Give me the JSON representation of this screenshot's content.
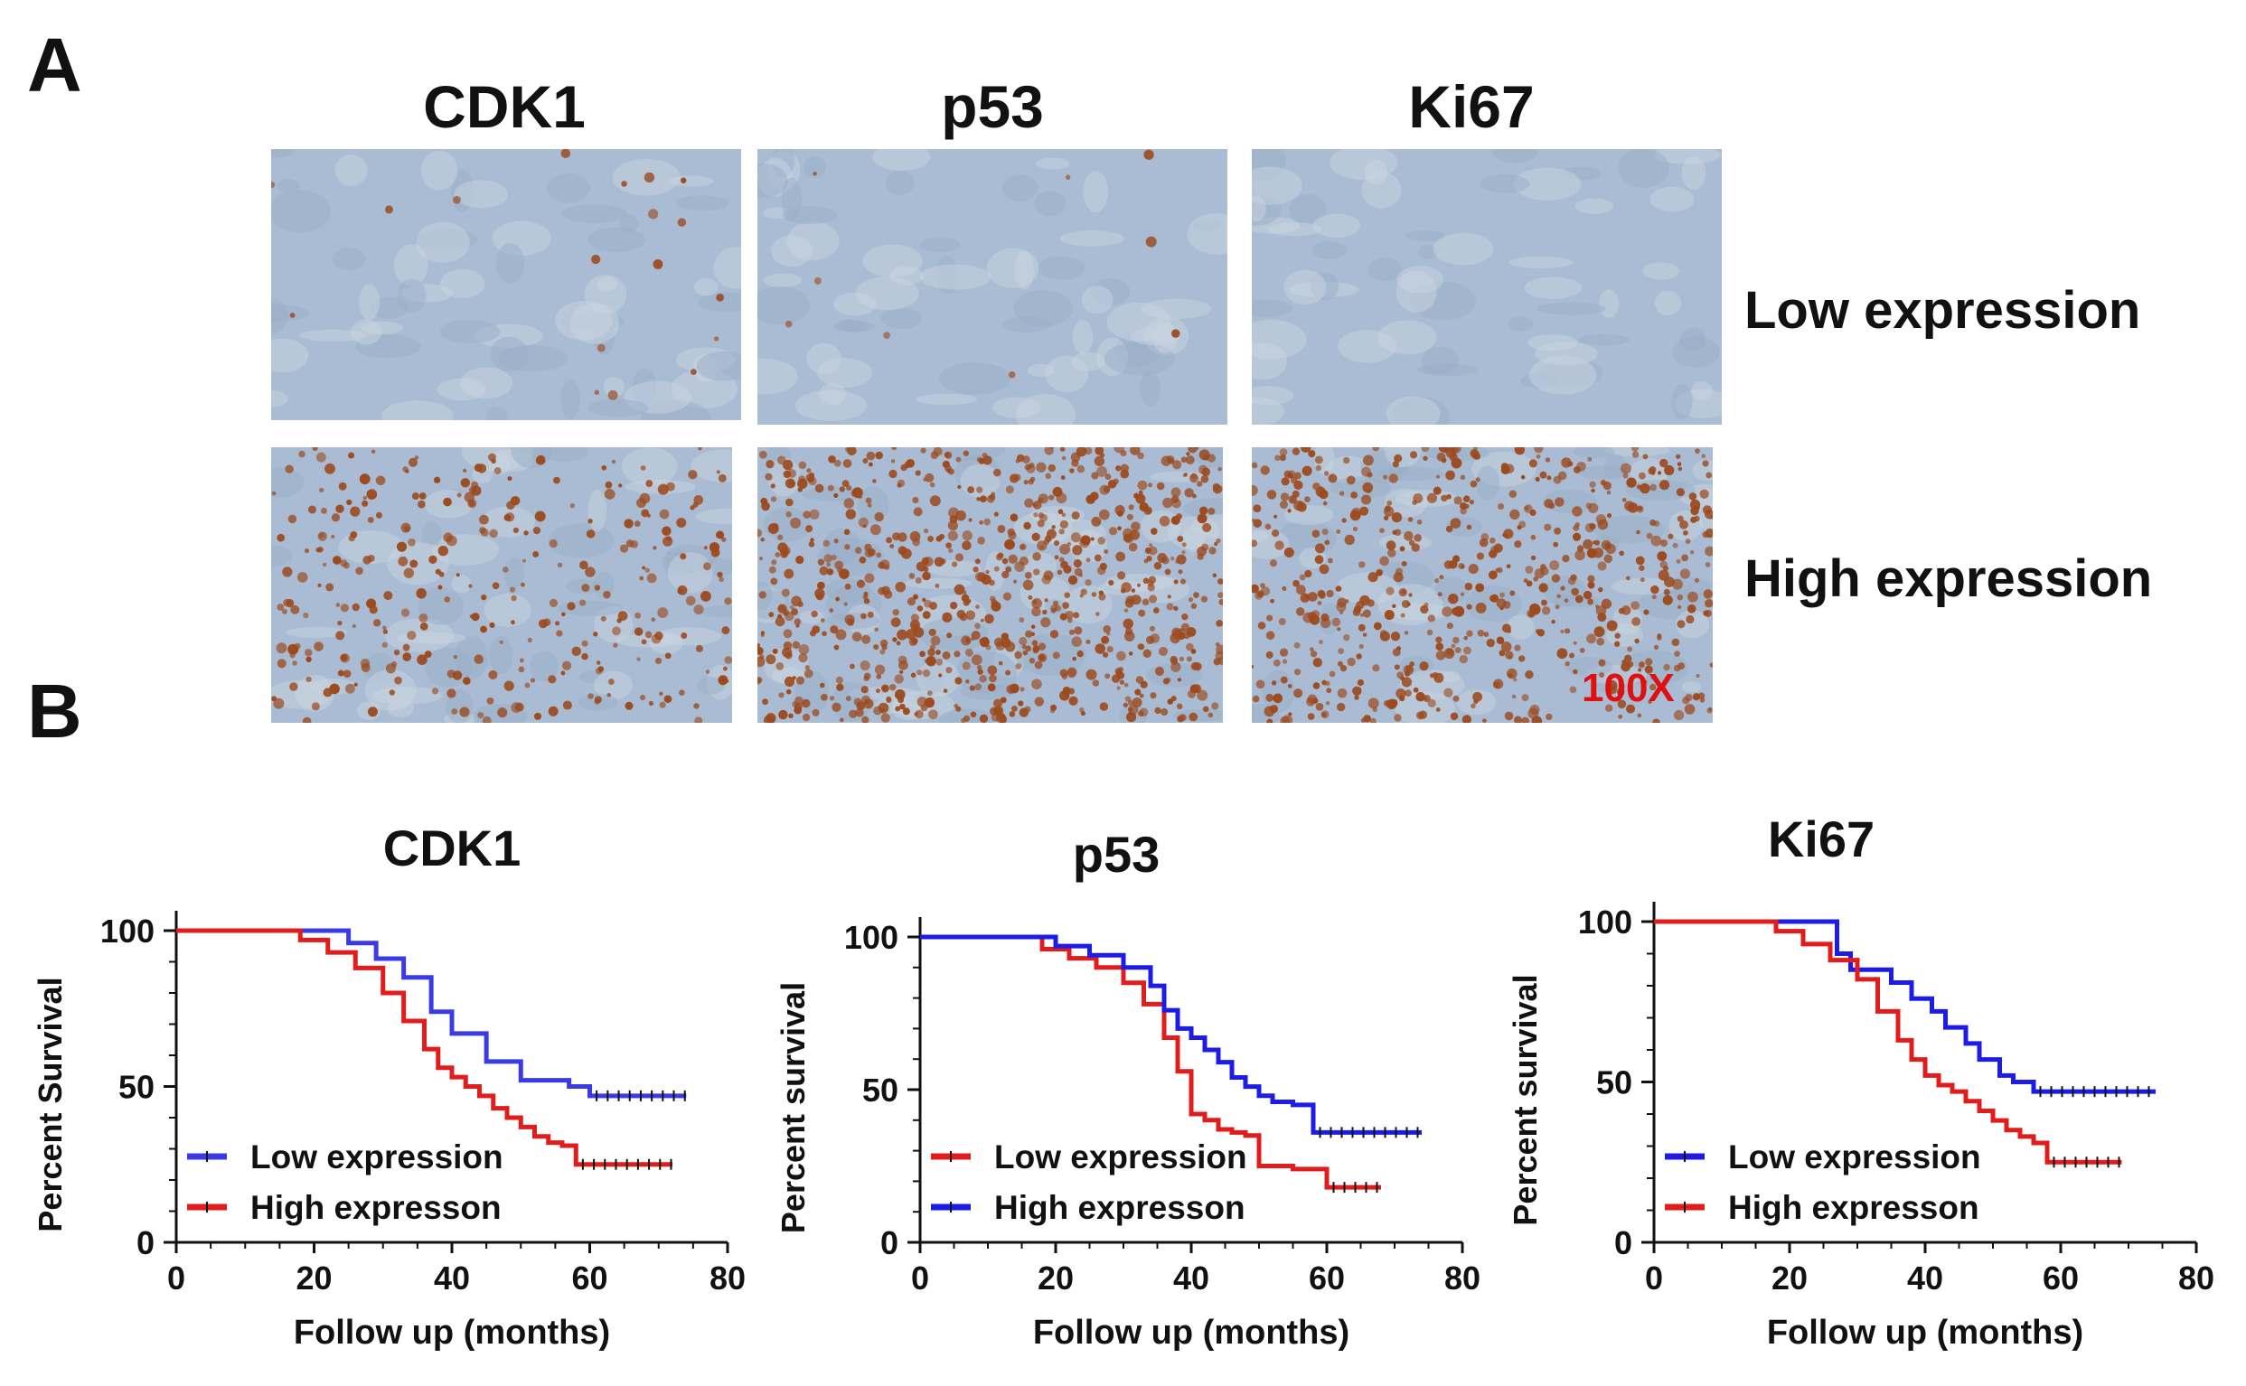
{
  "panel_a": {
    "letter": "A",
    "columns": [
      "CDK1",
      "p53",
      "Ki67"
    ],
    "rows": [
      "Low expression",
      "High expression"
    ],
    "magnification": "100X",
    "colors": {
      "hematoxylin": "#a9bcd3",
      "dab_stain": "#9c4a1e"
    }
  },
  "panel_b": {
    "letter": "B"
  },
  "chart_data": [
    {
      "type": "line",
      "title": "CDK1",
      "xlabel": "Follow up (months)",
      "ylabel": "Percent Survival",
      "xlim": [
        0,
        80
      ],
      "ylim": [
        0,
        100
      ],
      "x_ticks": [
        "0",
        "20",
        "40",
        "60",
        "80"
      ],
      "y_ticks": [
        "0",
        "50",
        "100"
      ],
      "legend_placement": "bottom-left",
      "series": [
        {
          "name": "Low expression",
          "color": "#3b3be6",
          "x": [
            0,
            25,
            25,
            29,
            29,
            33,
            33,
            37,
            37,
            40,
            40,
            45,
            45,
            50,
            50,
            57,
            57,
            60,
            60,
            74
          ],
          "y": [
            100,
            100,
            96,
            96,
            91,
            91,
            85,
            85,
            74,
            74,
            67,
            67,
            58,
            58,
            52,
            52,
            50,
            50,
            47,
            47
          ]
        },
        {
          "name": "High expresson",
          "color": "#e01c1c",
          "x": [
            0,
            12,
            18,
            22,
            26,
            30,
            33,
            36,
            38,
            40,
            42,
            44,
            46,
            48,
            50,
            52,
            54,
            56,
            58,
            58,
            72
          ],
          "y": [
            100,
            100,
            97,
            93,
            88,
            80,
            71,
            62,
            56,
            53,
            50,
            47,
            43,
            40,
            37,
            34,
            32,
            31,
            28,
            25,
            25
          ]
        }
      ]
    },
    {
      "type": "line",
      "title": "p53",
      "xlabel": "Follow up (months)",
      "ylabel": "Percent survival",
      "xlim": [
        0,
        80
      ],
      "ylim": [
        0,
        100
      ],
      "x_ticks": [
        "0",
        "20",
        "40",
        "60",
        "80"
      ],
      "y_ticks": [
        "0",
        "50",
        "100"
      ],
      "legend_placement": "bottom-left",
      "series": [
        {
          "name": "Low expression",
          "color": "#e01c1c",
          "x": [
            0,
            14,
            18,
            22,
            26,
            30,
            33,
            36,
            38,
            40,
            42,
            44,
            46,
            48,
            50,
            50,
            55,
            60,
            60,
            68
          ],
          "y": [
            100,
            100,
            96,
            93,
            90,
            85,
            78,
            67,
            56,
            42,
            40,
            37,
            36,
            35,
            30,
            25,
            24,
            22,
            18,
            18
          ]
        },
        {
          "name": "High expresson",
          "color": "#1c1ce6",
          "x": [
            0,
            15,
            20,
            25,
            30,
            34,
            36,
            38,
            40,
            42,
            44,
            46,
            48,
            50,
            52,
            55,
            58,
            58,
            74
          ],
          "y": [
            100,
            100,
            97,
            94,
            90,
            84,
            76,
            70,
            67,
            63,
            59,
            54,
            51,
            48,
            46,
            45,
            43,
            36,
            36
          ]
        }
      ]
    },
    {
      "type": "line",
      "title": "Ki67",
      "xlabel": "Follow up (months)",
      "ylabel": "Percent survival",
      "xlim": [
        0,
        80
      ],
      "ylim": [
        0,
        100
      ],
      "x_ticks": [
        "0",
        "20",
        "40",
        "60",
        "80"
      ],
      "y_ticks": [
        "0",
        "50",
        "100"
      ],
      "legend_placement": "bottom-left",
      "series": [
        {
          "name": "Low expression",
          "color": "#1c1ce6",
          "x": [
            0,
            27,
            27,
            29,
            29,
            35,
            35,
            38,
            38,
            41,
            41,
            43,
            43,
            46,
            46,
            48,
            48,
            51,
            51,
            53,
            53,
            56,
            56,
            74
          ],
          "y": [
            100,
            100,
            90,
            90,
            85,
            85,
            81,
            81,
            76,
            76,
            72,
            72,
            67,
            67,
            62,
            62,
            57,
            57,
            52,
            52,
            50,
            50,
            47,
            47
          ]
        },
        {
          "name": "High expresson",
          "color": "#e01c1c",
          "x": [
            0,
            12,
            18,
            22,
            26,
            30,
            33,
            36,
            38,
            40,
            42,
            44,
            46,
            48,
            50,
            52,
            54,
            56,
            58,
            58,
            69
          ],
          "y": [
            100,
            100,
            97,
            93,
            88,
            82,
            72,
            63,
            57,
            52,
            49,
            47,
            44,
            41,
            38,
            35,
            33,
            31,
            29,
            25,
            25
          ]
        }
      ]
    }
  ]
}
